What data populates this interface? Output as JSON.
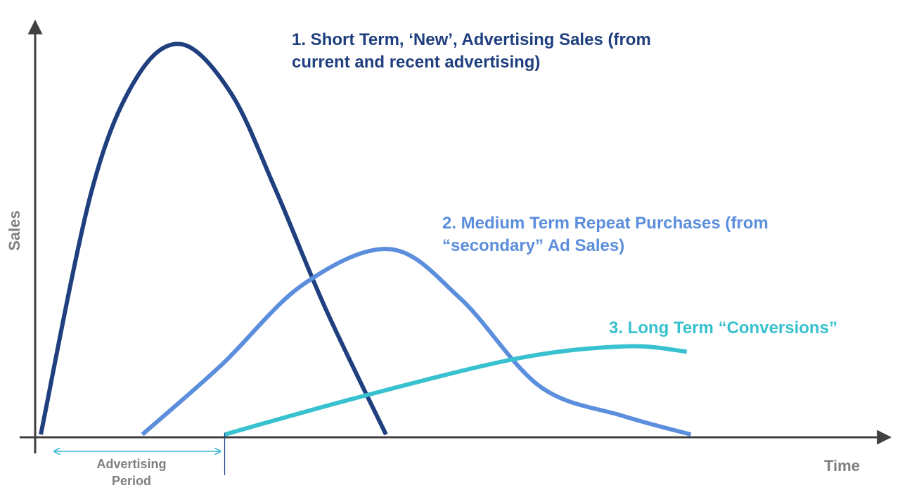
{
  "chart_data": {
    "type": "line",
    "title": "",
    "xlabel": "Time",
    "ylabel": "Sales",
    "xlim": [
      0,
      100
    ],
    "ylim": [
      0,
      100
    ],
    "grid": false,
    "legend": "none",
    "series": [
      {
        "name_lines": [
          "1. Short Term, ‘New’, Advertising Sales (from",
          "current and recent advertising)"
        ],
        "color": "#1f3f7f",
        "points": [
          [
            0,
            0
          ],
          [
            6.3,
            62.4
          ],
          [
            11.9,
            91.5
          ],
          [
            17.5,
            100
          ],
          [
            23.6,
            87.4
          ],
          [
            29.1,
            62.8
          ],
          [
            35.3,
            32.3
          ],
          [
            42.8,
            0
          ]
        ]
      },
      {
        "name_lines": [
          "2. Medium Term Repeat Purchases (from",
          "“secondary” Ad Sales)"
        ],
        "color": "#5b8edc",
        "points": [
          [
            12.6,
            0
          ],
          [
            22.4,
            17.8
          ],
          [
            32.5,
            38.4
          ],
          [
            43.3,
            47.5
          ],
          [
            52.1,
            34.7
          ],
          [
            61.9,
            12.3
          ],
          [
            72.1,
            4.8
          ],
          [
            80.6,
            0
          ]
        ]
      },
      {
        "name_lines": [
          "3. Long Term “Conversions”"
        ],
        "color": "#38c1ce",
        "points": [
          [
            22.8,
            0
          ],
          [
            39.9,
            9.8
          ],
          [
            59.4,
            19.6
          ],
          [
            72.6,
            22.6
          ],
          [
            80.1,
            21.2
          ]
        ]
      }
    ],
    "annotation": {
      "text_lines": [
        "Advertising",
        "Period"
      ],
      "x_start": 1.3,
      "x_end": 22.8,
      "color": "#3ab7d2"
    }
  }
}
